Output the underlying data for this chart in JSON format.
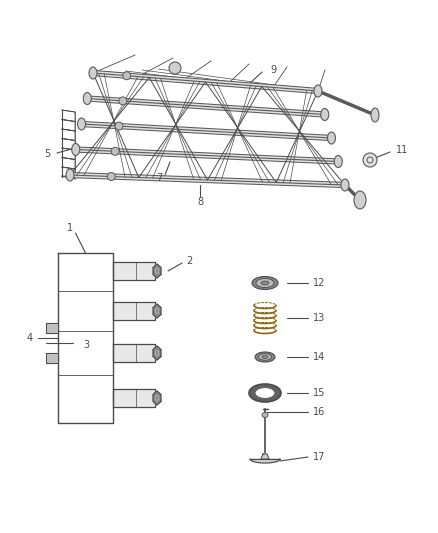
{
  "bg_color": "#ffffff",
  "line_color": "#4a4a4a",
  "label_color": "#4a4a4a",
  "fig_width": 4.38,
  "fig_height": 5.33,
  "dpi": 100,
  "assembly_color": "#5a5a5a",
  "gray_fill": "#c8c8c8",
  "dark_gray": "#3a3a3a"
}
